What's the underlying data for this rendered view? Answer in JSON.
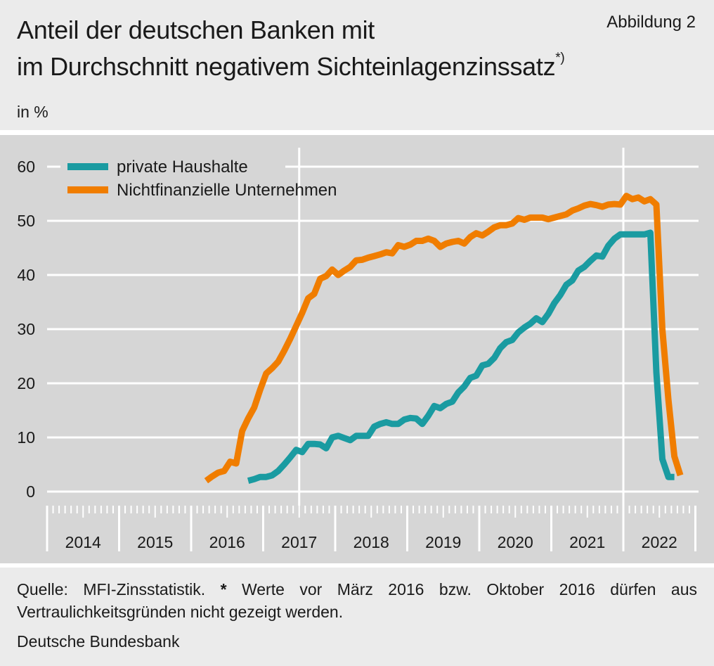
{
  "header": {
    "title_line1": "Anteil der deutschen Banken mit",
    "title_line2": "im Durchschnitt negativem Sichteinlagenzinssatz",
    "title_footnote_mark": "*)",
    "figure_label": "Abbildung 2",
    "unit": "in %"
  },
  "footer": {
    "source_prefix": "Quelle: MFI-Zinsstatistik.",
    "source_star": "*",
    "source_text": "Werte vor März 2016 bzw. Oktober 2016 dürfen aus Vertraulichkeitsgründen nicht gezeigt werden.",
    "publisher": "Deutsche Bundesbank"
  },
  "colors": {
    "private_haushalte": "#1a9ba1",
    "unternehmen": "#f07d00",
    "plot_background": "#d6d6d6",
    "grid": "#ffffff"
  },
  "chart_data": {
    "type": "line",
    "x_unit": "month",
    "x_range": [
      "2014-01",
      "2022-12"
    ],
    "x_tick_labels": [
      "2014",
      "2015",
      "2016",
      "2017",
      "2018",
      "2019",
      "2020",
      "2021",
      "2022"
    ],
    "ylim": [
      0,
      60
    ],
    "y_ticks": [
      0,
      10,
      20,
      30,
      40,
      50,
      60
    ],
    "grid": true,
    "legend_placement": "top-left",
    "series": [
      {
        "name": "private Haushalte",
        "color": "#1a9ba1",
        "x": [
          "2016-10",
          "2016-11",
          "2016-12",
          "2017-01",
          "2017-02",
          "2017-03",
          "2017-04",
          "2017-05",
          "2017-06",
          "2017-07",
          "2017-08",
          "2017-09",
          "2017-10",
          "2017-11",
          "2017-12",
          "2018-01",
          "2018-02",
          "2018-03",
          "2018-04",
          "2018-05",
          "2018-06",
          "2018-07",
          "2018-08",
          "2018-09",
          "2018-10",
          "2018-11",
          "2018-12",
          "2019-01",
          "2019-02",
          "2019-03",
          "2019-04",
          "2019-05",
          "2019-06",
          "2019-07",
          "2019-08",
          "2019-09",
          "2019-10",
          "2019-11",
          "2019-12",
          "2020-01",
          "2020-02",
          "2020-03",
          "2020-04",
          "2020-05",
          "2020-06",
          "2020-07",
          "2020-08",
          "2020-09",
          "2020-10",
          "2020-11",
          "2020-12",
          "2021-01",
          "2021-02",
          "2021-03",
          "2021-04",
          "2021-05",
          "2021-06",
          "2021-07",
          "2021-08",
          "2021-09",
          "2021-10",
          "2021-11",
          "2021-12",
          "2022-01",
          "2022-02",
          "2022-03",
          "2022-04",
          "2022-05",
          "2022-06",
          "2022-07",
          "2022-08",
          "2022-09"
        ],
        "values": [
          2.0,
          2.3,
          2.7,
          2.7,
          3.0,
          3.8,
          5.0,
          6.3,
          7.7,
          7.3,
          8.8,
          8.8,
          8.7,
          8.0,
          10.0,
          10.3,
          9.9,
          9.5,
          10.3,
          10.3,
          10.3,
          12.0,
          12.5,
          12.8,
          12.5,
          12.5,
          13.3,
          13.6,
          13.5,
          12.5,
          14.0,
          15.8,
          15.4,
          16.2,
          16.6,
          18.3,
          19.4,
          21.0,
          21.4,
          23.3,
          23.6,
          24.7,
          26.5,
          27.6,
          28.0,
          29.4,
          30.3,
          31.0,
          32.0,
          31.3,
          32.8,
          34.8,
          36.3,
          38.2,
          39.0,
          40.8,
          41.5,
          42.6,
          43.6,
          43.4,
          45.4,
          46.7,
          47.5,
          47.5,
          47.5,
          47.5,
          47.5,
          47.8,
          22.0,
          6.0,
          2.7,
          2.7
        ]
      },
      {
        "name": "Nichtfinanzielle Unternehmen",
        "color": "#f07d00",
        "x": [
          "2016-03",
          "2016-04",
          "2016-05",
          "2016-06",
          "2016-07",
          "2016-08",
          "2016-09",
          "2016-10",
          "2016-11",
          "2016-12",
          "2017-01",
          "2017-02",
          "2017-03",
          "2017-04",
          "2017-05",
          "2017-06",
          "2017-07",
          "2017-08",
          "2017-09",
          "2017-10",
          "2017-11",
          "2017-12",
          "2018-01",
          "2018-02",
          "2018-03",
          "2018-04",
          "2018-05",
          "2018-06",
          "2018-07",
          "2018-08",
          "2018-09",
          "2018-10",
          "2018-11",
          "2018-12",
          "2019-01",
          "2019-02",
          "2019-03",
          "2019-04",
          "2019-05",
          "2019-06",
          "2019-07",
          "2019-08",
          "2019-09",
          "2019-10",
          "2019-11",
          "2019-12",
          "2020-01",
          "2020-02",
          "2020-03",
          "2020-04",
          "2020-05",
          "2020-06",
          "2020-07",
          "2020-08",
          "2020-09",
          "2020-10",
          "2020-11",
          "2020-12",
          "2021-01",
          "2021-02",
          "2021-03",
          "2021-04",
          "2021-05",
          "2021-06",
          "2021-07",
          "2021-08",
          "2021-09",
          "2021-10",
          "2021-11",
          "2021-12",
          "2022-01",
          "2022-02",
          "2022-03",
          "2022-04",
          "2022-05",
          "2022-06",
          "2022-07",
          "2022-08",
          "2022-09",
          "2022-10"
        ],
        "values": [
          2.0,
          2.8,
          3.5,
          3.8,
          5.5,
          5.2,
          11.2,
          13.5,
          15.5,
          18.8,
          21.8,
          22.8,
          24.0,
          26.0,
          28.2,
          30.6,
          33.0,
          35.7,
          36.5,
          39.3,
          39.8,
          41.0,
          40.0,
          40.8,
          41.5,
          42.7,
          42.8,
          43.2,
          43.5,
          43.8,
          44.2,
          44.0,
          45.5,
          45.2,
          45.6,
          46.3,
          46.3,
          46.7,
          46.3,
          45.2,
          45.8,
          46.1,
          46.3,
          45.8,
          47.0,
          47.7,
          47.3,
          48.0,
          48.8,
          49.2,
          49.2,
          49.5,
          50.5,
          50.2,
          50.6,
          50.6,
          50.6,
          50.3,
          50.6,
          50.9,
          51.2,
          51.9,
          52.3,
          52.8,
          53.1,
          52.9,
          52.6,
          53.0,
          53.1,
          53.0,
          54.6,
          54.0,
          54.3,
          53.6,
          54.0,
          53.0,
          30.0,
          17.0,
          6.5,
          3.0
        ]
      }
    ]
  }
}
